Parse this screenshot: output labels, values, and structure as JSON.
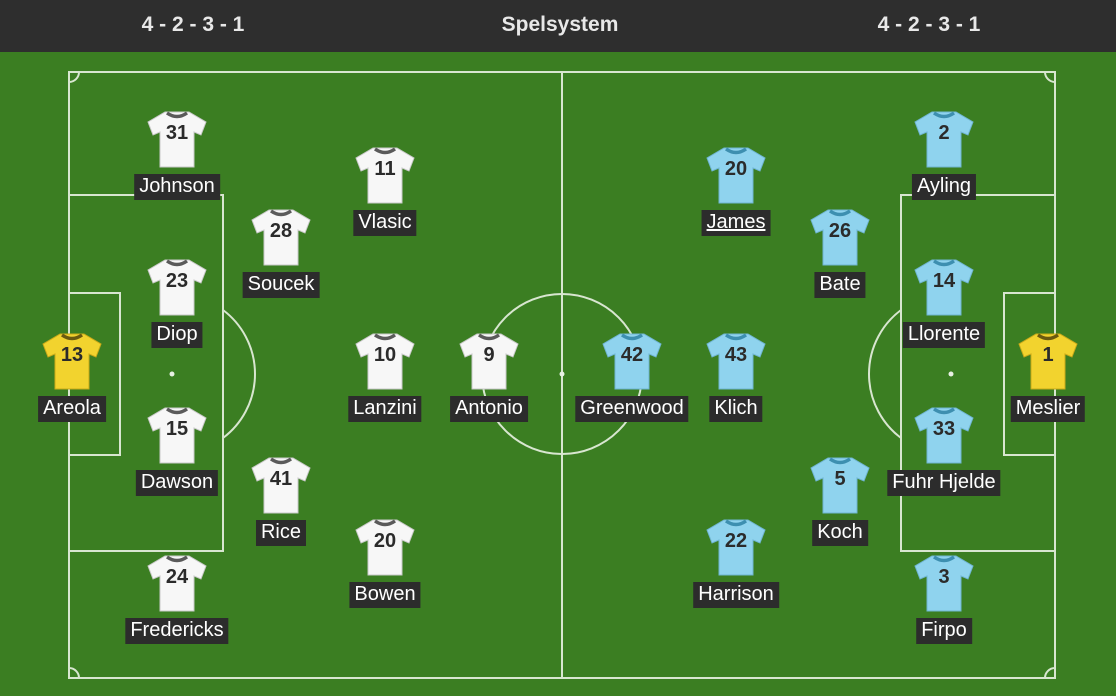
{
  "header": {
    "home_formation": "4 - 2 - 3 - 1",
    "title": "Spelsystem",
    "away_formation": "4 - 2 - 3 - 1"
  },
  "colors": {
    "pitch": "#3b7e22",
    "header": "#2e2e2e",
    "home_shirt": "#f7f7f7",
    "away_shirt": "#8fd3ee",
    "keeper_shirt": "#f2d32e",
    "name_bg": "#2c2c2c"
  },
  "home": {
    "players": [
      {
        "number": "13",
        "name": "Areola",
        "kit": "keeper"
      },
      {
        "number": "31",
        "name": "Johnson",
        "kit": "home"
      },
      {
        "number": "23",
        "name": "Diop",
        "kit": "home"
      },
      {
        "number": "15",
        "name": "Dawson",
        "kit": "home"
      },
      {
        "number": "24",
        "name": "Fredericks",
        "kit": "home"
      },
      {
        "number": "28",
        "name": "Soucek",
        "kit": "home"
      },
      {
        "number": "41",
        "name": "Rice",
        "kit": "home"
      },
      {
        "number": "11",
        "name": "Vlasic",
        "kit": "home"
      },
      {
        "number": "10",
        "name": "Lanzini",
        "kit": "home"
      },
      {
        "number": "20",
        "name": "Bowen",
        "kit": "home"
      },
      {
        "number": "9",
        "name": "Antonio",
        "kit": "home"
      }
    ]
  },
  "away": {
    "players": [
      {
        "number": "1",
        "name": "Meslier",
        "kit": "keeper"
      },
      {
        "number": "2",
        "name": "Ayling",
        "kit": "away"
      },
      {
        "number": "14",
        "name": "Llorente",
        "kit": "away"
      },
      {
        "number": "33",
        "name": "Fuhr Hjelde",
        "kit": "away"
      },
      {
        "number": "3",
        "name": "Firpo",
        "kit": "away"
      },
      {
        "number": "26",
        "name": "Bate",
        "kit": "away"
      },
      {
        "number": "5",
        "name": "Koch",
        "kit": "away"
      },
      {
        "number": "20",
        "name": "James",
        "kit": "away",
        "link": true
      },
      {
        "number": "43",
        "name": "Klich",
        "kit": "away"
      },
      {
        "number": "22",
        "name": "Harrison",
        "kit": "away"
      },
      {
        "number": "42",
        "name": "Greenwood",
        "kit": "away"
      }
    ]
  }
}
